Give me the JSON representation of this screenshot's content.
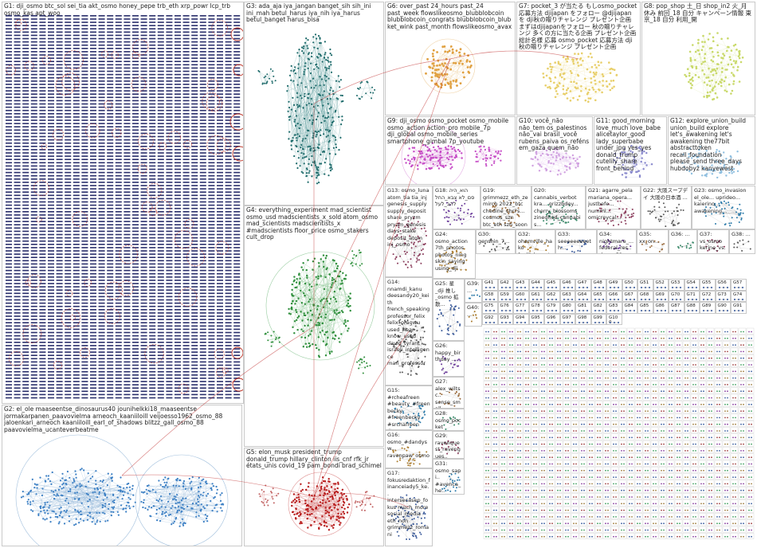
{
  "colors": {
    "g1": "#2a2f6b",
    "g1_edge": "#c0392b",
    "g2": "#3b7fc4",
    "g3": "#1d6a6a",
    "g4": "#2f8f3c",
    "g5": "#b81c1c",
    "g6": "#e0a040",
    "g7": "#e8cf6a",
    "g8": "#c9d96a",
    "g9": "#c64cc6",
    "g10": "#d0a0e0",
    "g11": "#8888cc",
    "g12": "#8fbfe0",
    "inter_edge": "#bb2222",
    "border": "#c9c9c9",
    "label": "#222222"
  },
  "groups": [
    {
      "id": "G1",
      "label": "G1: dji_osmo btc_sol sei_tia akt_osmo honey_pepe trb_eth xrp_powr lcp_trb osmo_kas apt_woo"
    },
    {
      "id": "G2",
      "label": "G2: el_ole maaseentse_dinosaurus40 jounihelkki18_maaseentse jormakarpanen_paavovielma arneoch_kaaniiloill veijoesso1962_osmo_88 jaloenkari_arneoch kaaniiloill_earl_of_shadows blitzz_gall_osmo_88 paavovielma_ucanteverbeatme"
    },
    {
      "id": "G3",
      "label": "G3: ada_aja iya_jangan banget_sih sih_ini ini_mah betul_harus iya_nih iya_harus betul_banget harus_bisa"
    },
    {
      "id": "G4",
      "label": "G4: everything_experiment mad_scientist osmo_usd madscientists_x_sold atom_osmo mad_scientists madscientists_x #madscientists floor_price osmo_stakers cult_drop"
    },
    {
      "id": "G5",
      "label": "G5: elon_musk president_trump donald_trump hillary_clinton iis_cnf rfk_jr états_unis covid_19 pam_bondi brad_schimel"
    },
    {
      "id": "G6",
      "label": "G6: over_past 24_hours past_24 past_week flowslikeosmo_blubblobcoin blubblobcoin_congrats blubblobcoin_blub ket_wink past_month flowslikeosmo_avax"
    },
    {
      "id": "G7",
      "label": "G7: pocket_3 が当たる もしosmo_pocket 応募方法 djijapan をフォロー @djijapan を dji秋の贈りチャレンジ プレゼント企画 まずはdjijapanをフォロー 秋の贈りチャレンジ 多くの方に当たる企画 プレゼント企画 総計名様 応募 osmo_pocket 応募方法 dji秋の贈りチャレンジ プレゼント企画"
    },
    {
      "id": "G8",
      "label": "G8: pop_shop 土_日 shop_in2 火_月 休み 前回_18 自分 キャンペーン情報 東京_18 自分 利用_開"
    },
    {
      "id": "G9",
      "label": "G9: dji_osmo osmo_pocket osmo_mobile osmo_action action_pro mobile_7p dji_global osmo_mobile_series smartphone_gimbal 7p_youtube"
    },
    {
      "id": "G10",
      "label": "G10: você_não não_tem os_palestinos não_vai brasil_você rubens_paiva os_reféns em_gaza quem_não"
    },
    {
      "id": "G11",
      "label": "G11: good_morning love_much love_babe alicetaylor_good lady_superbabe under_jpg yes_yes donald_trump cutelily_share front_behind"
    },
    {
      "id": "G12",
      "label": "G12: explore_union_build union_build explore let's_awakening let's awakening the77bit abstracttoken recall_foundation please_send three_days hubdobyz kanyewest"
    },
    {
      "id": "G13",
      "label": "G13: osmo_luna atom_tia tia_inj genesis_supply supply_deposit share_pryzm pryzm_genesis days_stake deposit_atom inj_osmo"
    },
    {
      "id": "G14",
      "label": "G14: nnamdi_kanu deesandy20_keith french_speaking professor_felix felix_oragwu used_hear know_used david_tyrant israeli_intelligence man_professor"
    },
    {
      "id": "G15",
      "label": "G15: #rcheafreen #beauty_#freenbecky #freenbecky #srchafreen #แจเบค_#freenbecky #freenbecky freen_srchafreen"
    },
    {
      "id": "G16",
      "label": "G16: osmo_#dandysw... ravenpaw_osmo"
    },
    {
      "id": "G17",
      "label": "G17: fokusredaktion_financeiady5_ke.. intersecasep_fokus much_more social_media eth_non grimmezz_romani"
    },
    {
      "id": "G18",
      "label": "G18: הוא_היה סם_לא צבא_החל להב_לעל"
    },
    {
      "id": "G19",
      "label": "G19: grimmezz_eth_zemirch 2022_btc chedine_chri's... cosmos_szn btc_eth szn_soon"
    },
    {
      "id": "G20",
      "label": "G20: cannabis_verbot kra... grizzbdey... cherry_blossoms zinedhod_cannabis..."
    },
    {
      "id": "G21",
      "label": "G21: agarre_pela mariana_opera... justbefe... nummi... omicreycal..."
    },
    {
      "id": "G22",
      "label": "G22: 大阪スープデイ 大阪の日本酒 ..."
    },
    {
      "id": "G23",
      "label": "G23: osmo_invasion el_ole... uprideo... kaierino... awakening..."
    },
    {
      "id": "G24",
      "label": "G24: osmo_action 7th_photos photos_ning skin_saying using_dji"
    },
    {
      "id": "G25",
      "label": "G25: 星_dji 推し_osmo 拡散..."
    },
    {
      "id": "G26",
      "label": "G26: happy_birthday ..."
    },
    {
      "id": "G27",
      "label": "G27: alex_wiltsc.. sense_small"
    },
    {
      "id": "G28",
      "label": "G28: osmo_pocket"
    },
    {
      "id": "G29",
      "label": "G29: ravenquest_ravengues.. aether_ravenquest.. always_don.."
    },
    {
      "id": "G30",
      "label": "G30: genshin_7..."
    },
    {
      "id": "G31",
      "label": "G31: osmo_sapi.. #avenca_he.. pounce_doo.. habitual_kw"
    },
    {
      "id": "G32",
      "label": "G32: ohemville_hako funlilcharacter_l.. pezz477_hakoki.."
    },
    {
      "id": "G33",
      "label": "G33: seeeeeeeeeth..."
    },
    {
      "id": "G34",
      "label": "G34: nightmare_... federal_res.. down_52..."
    },
    {
      "id": "G35",
      "label": "G35: xx_on..."
    },
    {
      "id": "G36",
      "label": "G36: ..."
    },
    {
      "id": "G37",
      "label": "G37: vs_osmo kerine_vs..."
    },
    {
      "id": "G38",
      "label": "G38: ..."
    },
    {
      "id": "G39",
      "label": "G39: ..."
    },
    {
      "id": "G40",
      "label": "G40: ..."
    }
  ],
  "small_groups": [
    "G41",
    "G42",
    "G43",
    "G44",
    "G45",
    "G46",
    "G47",
    "G48",
    "G49",
    "G50",
    "G51",
    "G52",
    "G53",
    "G54",
    "G55",
    "G56",
    "G57",
    "G58",
    "G59",
    "G60",
    "G61",
    "G62",
    "G63",
    "G64",
    "G65",
    "G66",
    "G67",
    "G68",
    "G69",
    "G70",
    "G71",
    "G72",
    "G73",
    "G74",
    "G75",
    "G76",
    "G77",
    "G78",
    "G79",
    "G80",
    "G81",
    "G82",
    "G83",
    "G84",
    "G85",
    "G86",
    "G87",
    "G88",
    "G89",
    "G90",
    "G91",
    "G92",
    "G93",
    "G94",
    "G95",
    "G96",
    "G97",
    "G98",
    "G99",
    "G100"
  ]
}
